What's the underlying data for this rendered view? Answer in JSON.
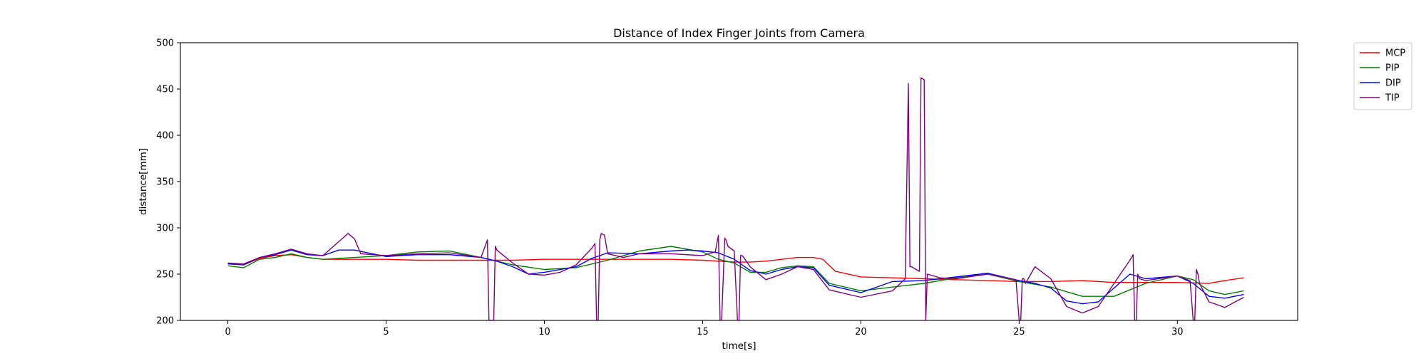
{
  "chart_data": {
    "type": "line",
    "title": "Distance of Index Finger Joints from Camera",
    "xlabel": "time[s]",
    "ylabel": "distance[mm]",
    "xlim": [
      -1.5,
      33.8
    ],
    "ylim": [
      200,
      500
    ],
    "xticks": [
      0,
      5,
      10,
      15,
      20,
      25,
      30
    ],
    "yticks": [
      200,
      250,
      300,
      350,
      400,
      450,
      500
    ],
    "grid": false,
    "legend_position": "outside-top-right",
    "series": [
      {
        "name": "MCP",
        "color": "#ff0000",
        "x": [
          0,
          0.5,
          1,
          1.5,
          2,
          2.5,
          3,
          4,
          5,
          6,
          7,
          8,
          9,
          10,
          11,
          12,
          13,
          14,
          15,
          16,
          16.5,
          17,
          17.5,
          18,
          18.5,
          18.8,
          19.2,
          20,
          21,
          22,
          23,
          24,
          25,
          26,
          27,
          28,
          29,
          30,
          31,
          31.5,
          32.1
        ],
        "y": [
          262,
          260,
          267,
          270,
          271,
          268,
          266,
          266,
          266,
          265,
          265,
          265,
          265,
          266,
          266,
          266,
          266,
          266,
          265,
          263,
          263,
          264,
          266,
          268,
          268,
          266,
          253,
          247,
          246,
          245,
          244,
          243,
          242,
          242,
          243,
          241,
          241,
          241,
          240,
          243,
          246
        ]
      },
      {
        "name": "PIP",
        "color": "#008000",
        "x": [
          0,
          0.5,
          1,
          1.5,
          2,
          2.5,
          3,
          4,
          5,
          6,
          7,
          8,
          9,
          10,
          11,
          12,
          13,
          14,
          15,
          15.5,
          16,
          16.5,
          17,
          17.5,
          18,
          18.5,
          19,
          20,
          21,
          22,
          23,
          24,
          25,
          26,
          27,
          28,
          29,
          30,
          30.5,
          31,
          31.5,
          32.1
        ],
        "y": [
          259,
          257,
          266,
          268,
          272,
          268,
          266,
          268,
          270,
          274,
          275,
          268,
          260,
          255,
          257,
          265,
          275,
          280,
          274,
          266,
          262,
          252,
          252,
          257,
          259,
          258,
          240,
          232,
          236,
          240,
          246,
          250,
          242,
          236,
          226,
          226,
          240,
          248,
          244,
          232,
          228,
          232
        ]
      },
      {
        "name": "DIP",
        "color": "#0000ff",
        "x": [
          0,
          0.5,
          1,
          1.5,
          2,
          2.5,
          3,
          3.5,
          4,
          5,
          6,
          7,
          8,
          8.5,
          9,
          9.5,
          10,
          11,
          11.5,
          12,
          13,
          14,
          14.5,
          15,
          15.5,
          16,
          16.5,
          17,
          17.5,
          18,
          18.5,
          19,
          20,
          21,
          22,
          23,
          24,
          25,
          25.5,
          26,
          26.5,
          27,
          27.5,
          28,
          28.5,
          29,
          30,
          30.5,
          31,
          31.5,
          32.1
        ],
        "y": [
          261,
          260,
          268,
          271,
          276,
          271,
          270,
          276,
          276,
          269,
          271,
          271,
          268,
          264,
          258,
          250,
          252,
          258,
          267,
          273,
          272,
          275,
          276,
          275,
          273,
          266,
          254,
          250,
          255,
          258,
          257,
          238,
          230,
          242,
          243,
          247,
          251,
          243,
          240,
          235,
          221,
          218,
          220,
          235,
          250,
          245,
          248,
          240,
          226,
          224,
          228
        ]
      },
      {
        "name": "TIP",
        "color": "#800080",
        "x": [
          0,
          0.5,
          1,
          1.5,
          2,
          2.5,
          3,
          3.5,
          3.8,
          4,
          4.2,
          5,
          6,
          7,
          8,
          8.2,
          8.25,
          8.3,
          8.35,
          8.4,
          8.45,
          8.5,
          9,
          9.5,
          10,
          10.5,
          11,
          11.5,
          11.6,
          11.65,
          11.7,
          11.75,
          11.8,
          11.9,
          12,
          12.5,
          13,
          14,
          15,
          15.4,
          15.5,
          15.55,
          15.6,
          15.7,
          15.75,
          15.8,
          16,
          16.1,
          16.15,
          16.2,
          16.25,
          16.3,
          16.5,
          17,
          17.5,
          18,
          18.5,
          19,
          20,
          21,
          21.4,
          21.5,
          21.55,
          21.6,
          21.85,
          21.9,
          22,
          22.05,
          22.1,
          22.5,
          23,
          24,
          24.9,
          25,
          25.05,
          25.1,
          25.15,
          25.2,
          25.5,
          26,
          26.5,
          27,
          27.5,
          28,
          28.5,
          28.6,
          28.65,
          28.7,
          28.75,
          28.8,
          29,
          30,
          30.4,
          30.5,
          30.55,
          30.6,
          30.65,
          30.7,
          31,
          31.5,
          32.1
        ],
        "y": [
          262,
          261,
          268,
          272,
          277,
          272,
          270,
          285,
          294,
          288,
          272,
          270,
          272,
          273,
          268,
          287,
          200,
          200,
          200,
          200,
          280,
          276,
          262,
          250,
          249,
          252,
          260,
          278,
          283,
          200,
          200,
          287,
          294,
          292,
          272,
          268,
          272,
          272,
          270,
          274,
          292,
          200,
          200,
          289,
          286,
          280,
          275,
          200,
          200,
          270,
          270,
          268,
          258,
          244,
          250,
          258,
          255,
          233,
          225,
          232,
          245,
          456,
          258,
          258,
          253,
          462,
          460,
          200,
          250,
          246,
          245,
          250,
          244,
          200,
          200,
          245,
          245,
          240,
          258,
          245,
          215,
          208,
          215,
          240,
          265,
          271,
          200,
          200,
          250,
          245,
          243,
          248,
          243,
          200,
          200,
          255,
          250,
          240,
          220,
          214,
          225
        ]
      }
    ]
  }
}
